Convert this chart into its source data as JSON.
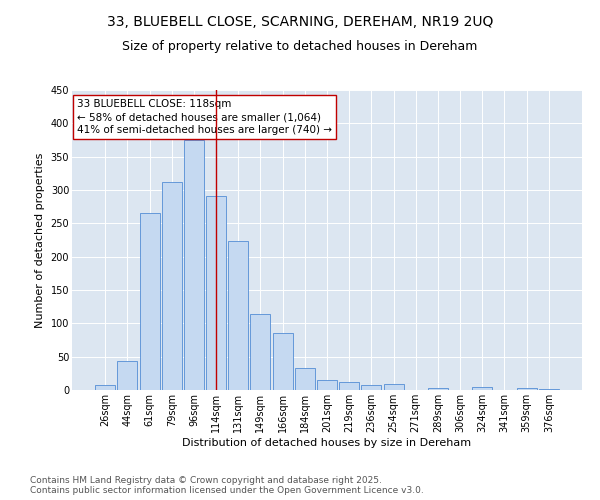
{
  "title": "33, BLUEBELL CLOSE, SCARNING, DEREHAM, NR19 2UQ",
  "subtitle": "Size of property relative to detached houses in Dereham",
  "xlabel": "Distribution of detached houses by size in Dereham",
  "ylabel": "Number of detached properties",
  "categories": [
    "26sqm",
    "44sqm",
    "61sqm",
    "79sqm",
    "96sqm",
    "114sqm",
    "131sqm",
    "149sqm",
    "166sqm",
    "184sqm",
    "201sqm",
    "219sqm",
    "236sqm",
    "254sqm",
    "271sqm",
    "289sqm",
    "306sqm",
    "324sqm",
    "341sqm",
    "359sqm",
    "376sqm"
  ],
  "values": [
    7,
    43,
    265,
    312,
    375,
    291,
    224,
    114,
    85,
    33,
    15,
    12,
    8,
    9,
    0,
    3,
    0,
    5,
    0,
    3,
    1
  ],
  "bar_color": "#c5d9f1",
  "bar_edge_color": "#538dd5",
  "vline_x": 5,
  "vline_color": "#c00000",
  "annotation_text": "33 BLUEBELL CLOSE: 118sqm\n← 58% of detached houses are smaller (1,064)\n41% of semi-detached houses are larger (740) →",
  "annotation_box_color": "white",
  "annotation_box_edge_color": "#c00000",
  "ylim": [
    0,
    450
  ],
  "yticks": [
    0,
    50,
    100,
    150,
    200,
    250,
    300,
    350,
    400,
    450
  ],
  "bg_color": "#dce6f1",
  "footer_line1": "Contains HM Land Registry data © Crown copyright and database right 2025.",
  "footer_line2": "Contains public sector information licensed under the Open Government Licence v3.0.",
  "title_fontsize": 10,
  "subtitle_fontsize": 9,
  "annotation_fontsize": 7.5,
  "tick_fontsize": 7,
  "axis_label_fontsize": 8,
  "footer_fontsize": 6.5
}
